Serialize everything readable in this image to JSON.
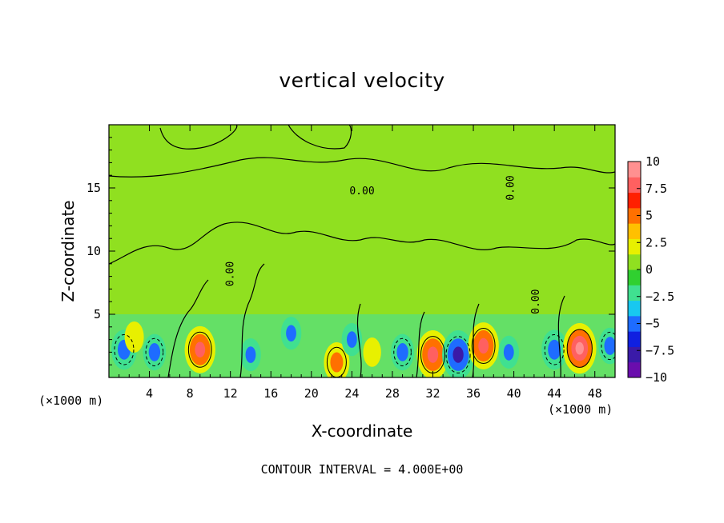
{
  "chart_data": {
    "type": "heatmap",
    "title": "vertical velocity",
    "xlabel": "X-coordinate",
    "ylabel": "Z-coordinate",
    "x_unit_label": "(×1000 m)",
    "x_unit_label_right": "(×1000 m)",
    "footer": "CONTOUR INTERVAL = 4.000E+00",
    "xlim": [
      0,
      50
    ],
    "ylim": [
      0,
      20
    ],
    "x_ticks": [
      "4",
      "8",
      "12",
      "16",
      "20",
      "24",
      "28",
      "32",
      "36",
      "40",
      "44",
      "48"
    ],
    "x_tick_values": [
      4,
      8,
      12,
      16,
      20,
      24,
      28,
      32,
      36,
      40,
      44,
      48
    ],
    "y_ticks": [
      "5",
      "10",
      "15"
    ],
    "y_tick_values": [
      5,
      10,
      15
    ],
    "colorbar": {
      "min": -10,
      "max": 10,
      "labels": [
        "10",
        "7.5",
        "5",
        "2.5",
        "0",
        "−2.5",
        "−5",
        "−7.5",
        "−10"
      ],
      "label_values": [
        10,
        7.5,
        5,
        2.5,
        0,
        -2.5,
        -5,
        -7.5,
        -10
      ],
      "colors": [
        "#6a0dad",
        "#3a1aa8",
        "#1020e0",
        "#1e6cff",
        "#18c8f0",
        "#40e090",
        "#30d030",
        "#90e020",
        "#e8f000",
        "#ffc000",
        "#ff7000",
        "#ff2000",
        "#ff6060",
        "#ff9090"
      ]
    },
    "contour_labels": [
      "0.00",
      "0.00",
      "0.00",
      "0.00"
    ],
    "background_value": 0,
    "features": [
      {
        "x": 1.5,
        "z": 2.2,
        "value": -5
      },
      {
        "x": 4.5,
        "z": 2.0,
        "value": -4
      },
      {
        "x": 2.5,
        "z": 3.2,
        "value": 2.5
      },
      {
        "x": 9.0,
        "z": 2.2,
        "value": 7
      },
      {
        "x": 14.0,
        "z": 1.8,
        "value": -3
      },
      {
        "x": 22.5,
        "z": 1.2,
        "value": 5
      },
      {
        "x": 24.0,
        "z": 3.0,
        "value": -3
      },
      {
        "x": 29.0,
        "z": 2.0,
        "value": -4
      },
      {
        "x": 32.0,
        "z": 1.8,
        "value": 7.5
      },
      {
        "x": 34.5,
        "z": 1.8,
        "value": -7.5
      },
      {
        "x": 37.0,
        "z": 2.5,
        "value": 7
      },
      {
        "x": 39.5,
        "z": 2.0,
        "value": -3
      },
      {
        "x": 44.0,
        "z": 2.2,
        "value": -5
      },
      {
        "x": 46.5,
        "z": 2.3,
        "value": 8
      },
      {
        "x": 49.5,
        "z": 2.5,
        "value": -4
      },
      {
        "x": 18.0,
        "z": 3.5,
        "value": -3
      },
      {
        "x": 26.0,
        "z": 2.0,
        "value": 2
      }
    ]
  }
}
